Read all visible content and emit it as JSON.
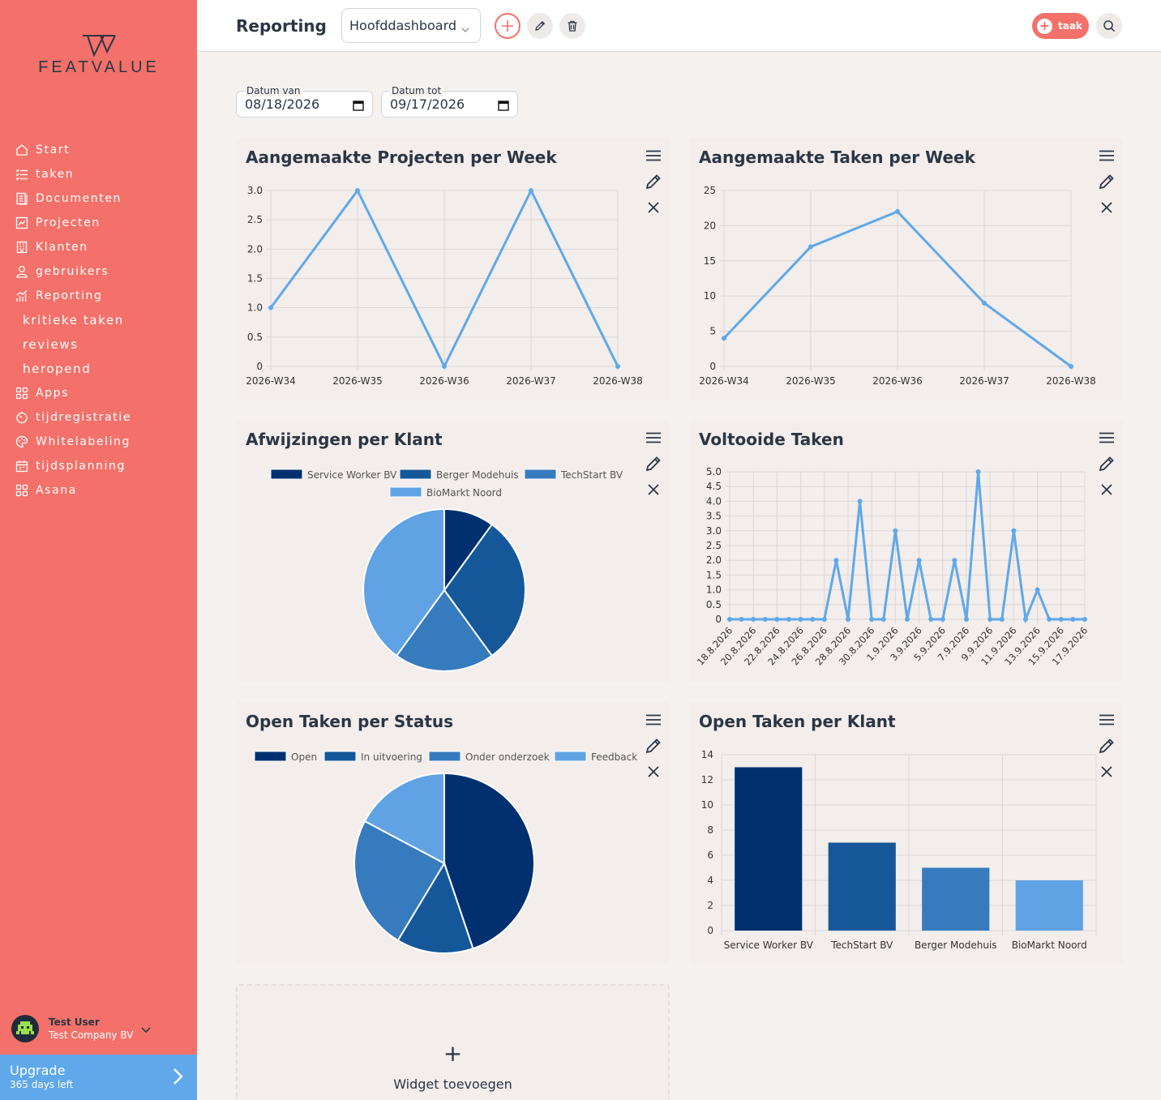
{
  "brand": {
    "name": "FEATVALUE"
  },
  "colors": {
    "sidebar": "#f3716a",
    "accent": "#f3716a",
    "upgrade": "#5fa8ea",
    "line": "#5fa8ea",
    "navy": "#003070",
    "blue1": "#14589a",
    "blue2": "#377bbf",
    "blue3": "#5fa3e4"
  },
  "sidebar": {
    "items": [
      {
        "label": "Start",
        "icon": "home-icon"
      },
      {
        "label": "taken",
        "icon": "checklist-icon"
      },
      {
        "label": "Documenten",
        "icon": "document-icon"
      },
      {
        "label": "Projecten",
        "icon": "project-chart-icon"
      },
      {
        "label": "Klanten",
        "icon": "building-icon"
      },
      {
        "label": "gebruikers",
        "icon": "user-icon"
      },
      {
        "label": "Reporting",
        "icon": "bar-chart-icon"
      },
      {
        "label": "kritieke taken",
        "icon": ""
      },
      {
        "label": "reviews",
        "icon": ""
      },
      {
        "label": "heropend",
        "icon": ""
      },
      {
        "label": "Apps",
        "icon": "apps-icon"
      },
      {
        "label": "tijdregistratie",
        "icon": "timer-icon"
      },
      {
        "label": "Whitelabeling",
        "icon": "palette-icon"
      },
      {
        "label": "tijdsplanning",
        "icon": "calendar-icon"
      },
      {
        "label": "Asana",
        "icon": "apps-icon"
      }
    ],
    "user": {
      "name": "Test User",
      "company": "Test Company BV"
    },
    "upgrade": {
      "title": "Upgrade",
      "subtitle": "365 days left"
    }
  },
  "header": {
    "title": "Reporting",
    "dashboard": "Hoofddashboard",
    "task_button": "taak"
  },
  "filters": {
    "from_label": "Datum van",
    "from_value": "08/18/2026",
    "to_label": "Datum tot",
    "to_value": "09/17/2026"
  },
  "widgets": {
    "w1": {
      "title": "Aangemaakte Projecten per Week"
    },
    "w2": {
      "title": "Aangemaakte Taken per Week"
    },
    "w3": {
      "title": "Afwijzingen per Klant"
    },
    "w4": {
      "title": "Voltooide Taken"
    },
    "w5": {
      "title": "Open Taken per Status"
    },
    "w6": {
      "title": "Open Taken per Klant"
    },
    "add_label": "Widget toevoegen"
  },
  "chart_data": [
    {
      "id": "projects-per-week",
      "type": "line",
      "title": "Aangemaakte Projecten per Week",
      "categories": [
        "2026-W34",
        "2026-W35",
        "2026-W36",
        "2026-W37",
        "2026-W38"
      ],
      "values": [
        1,
        3,
        0,
        3,
        0
      ],
      "ylim": [
        0,
        3
      ],
      "yticks": [
        "0",
        "0.5",
        "1.0",
        "1.5",
        "2.0",
        "2.5",
        "3.0"
      ],
      "grid": true
    },
    {
      "id": "tasks-per-week",
      "type": "line",
      "title": "Aangemaakte Taken per Week",
      "categories": [
        "2026-W34",
        "2026-W35",
        "2026-W36",
        "2026-W37",
        "2026-W38"
      ],
      "values": [
        4,
        17,
        22,
        9,
        0
      ],
      "ylim": [
        0,
        25
      ],
      "yticks": [
        "0",
        "5",
        "10",
        "15",
        "20",
        "25"
      ],
      "grid": true
    },
    {
      "id": "rejections-per-client",
      "type": "pie",
      "title": "Afwijzingen per Klant",
      "labels": [
        "Service Worker BV",
        "Berger Modehuis",
        "TechStart BV",
        "BioMarkt Noord"
      ],
      "values": [
        1,
        3,
        2,
        4
      ],
      "colors": [
        "#003070",
        "#14589a",
        "#377bbf",
        "#5fa3e4"
      ],
      "legend": "top"
    },
    {
      "id": "completed-tasks",
      "type": "line",
      "title": "Voltooide Taken",
      "categories": [
        "18.8.2026",
        "19.8.2026",
        "20.8.2026",
        "21.8.2026",
        "22.8.2026",
        "23.8.2026",
        "24.8.2026",
        "25.8.2026",
        "26.8.2026",
        "27.8.2026",
        "28.8.2026",
        "29.8.2026",
        "30.8.2026",
        "31.8.2026",
        "1.9.2026",
        "2.9.2026",
        "3.9.2026",
        "4.9.2026",
        "5.9.2026",
        "6.9.2026",
        "7.9.2026",
        "8.9.2026",
        "9.9.2026",
        "10.9.2026",
        "11.9.2026",
        "12.9.2026",
        "13.9.2026",
        "14.9.2026",
        "15.9.2026",
        "16.9.2026",
        "17.9.2026"
      ],
      "tick_labels": [
        "18.8.2026",
        "20.8.2026",
        "22.8.2026",
        "24.8.2026",
        "26.8.2026",
        "28.8.2026",
        "30.8.2026",
        "1.9.2026",
        "3.9.2026",
        "5.9.2026",
        "7.9.2026",
        "9.9.2026",
        "11.9.2026",
        "13.9.2026",
        "15.9.2026",
        "17.9.2026"
      ],
      "values": [
        0,
        0,
        0,
        0,
        0,
        0,
        0,
        0,
        0,
        2,
        0,
        4,
        0,
        0,
        3,
        0,
        2,
        0,
        0,
        2,
        0,
        5,
        0,
        0,
        3,
        0,
        1,
        0,
        0,
        0,
        0
      ],
      "ylim": [
        0,
        5
      ],
      "yticks": [
        "0",
        "0.5",
        "1.0",
        "1.5",
        "2.0",
        "2.5",
        "3.0",
        "3.5",
        "4.0",
        "4.5",
        "5.0"
      ],
      "grid": true
    },
    {
      "id": "open-tasks-per-status",
      "type": "pie",
      "title": "Open Taken per Status",
      "labels": [
        "Open",
        "In uitvoering",
        "Onder onderzoek",
        "Feedback"
      ],
      "values": [
        13,
        4,
        7,
        5
      ],
      "colors": [
        "#003070",
        "#14589a",
        "#377bbf",
        "#5fa3e4"
      ],
      "legend": "top"
    },
    {
      "id": "open-tasks-per-client",
      "type": "bar",
      "title": "Open Taken per Klant",
      "categories": [
        "Service Worker BV",
        "TechStart BV",
        "Berger Modehuis",
        "BioMarkt Noord"
      ],
      "values": [
        13,
        7,
        5,
        4
      ],
      "colors": [
        "#003070",
        "#14589a",
        "#377bbf",
        "#5fa3e4"
      ],
      "ylim": [
        0,
        14
      ],
      "yticks": [
        "0",
        "2",
        "4",
        "6",
        "8",
        "10",
        "12",
        "14"
      ],
      "grid": true
    }
  ]
}
